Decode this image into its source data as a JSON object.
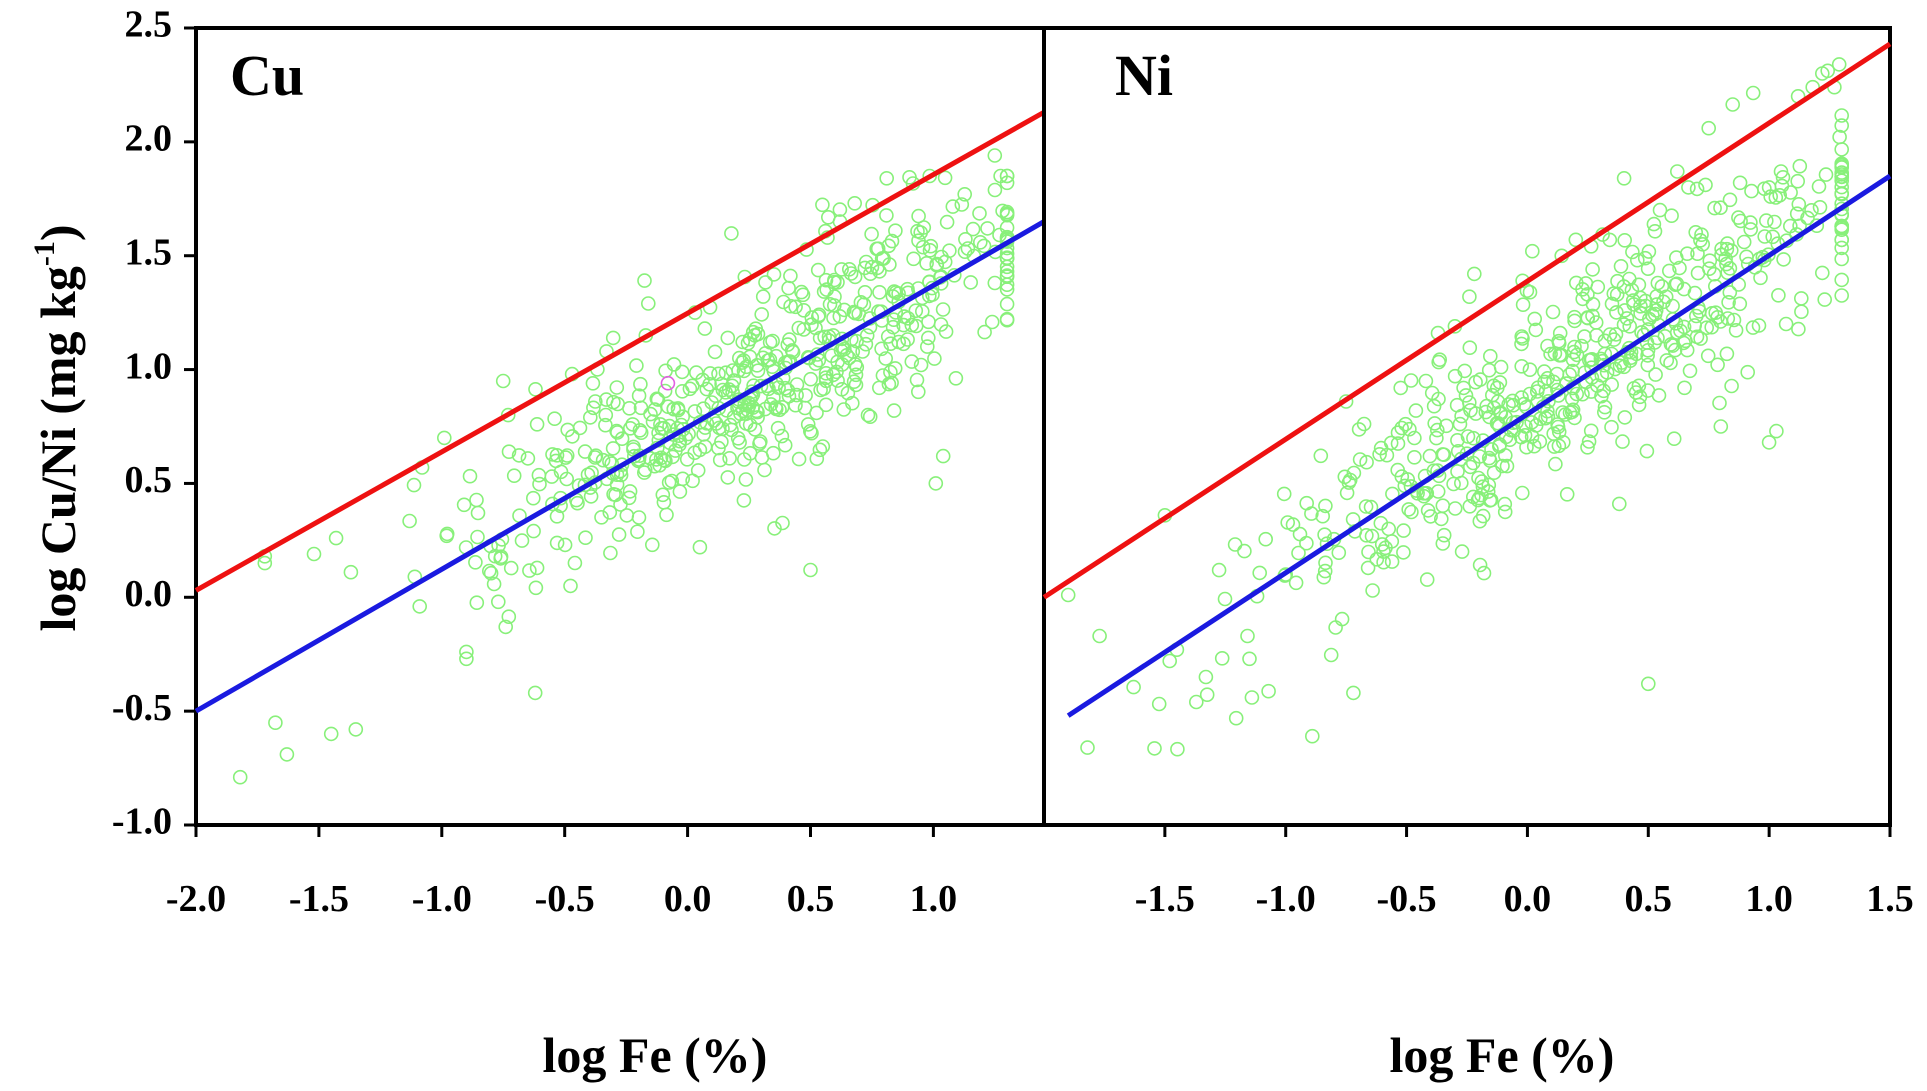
{
  "figure": {
    "ylabel": "log Cu/Ni (mg kg",
    "ylabel_sup": "-1",
    "ylabel_close": ")",
    "colors": {
      "points": "#88f07a",
      "upper_line": "#ee1111",
      "lower_line": "#1a1ae0",
      "outlier_point": "#e060e0"
    }
  },
  "chart_data": [
    {
      "type": "scatter",
      "title": "Cu",
      "xlabel": "log Fe (%)",
      "ylabel": "log Cu/Ni (mg kg-1)",
      "xlim": [
        -2.0,
        1.45
      ],
      "ylim": [
        -1.0,
        2.5
      ],
      "xticks": [
        "-2.0",
        "-1.5",
        "-1.0",
        "-0.5",
        "0.0",
        "0.5",
        "1.0"
      ],
      "yticks": [
        "-1.0",
        "-0.5",
        "0.0",
        "0.5",
        "1.0",
        "1.5",
        "2.0",
        "2.5"
      ],
      "grid": false,
      "legend": "none",
      "lines": [
        {
          "color": "red",
          "x": [
            -2.0,
            1.45
          ],
          "y": [
            0.03,
            2.13
          ]
        },
        {
          "color": "blue",
          "x": [
            -2.0,
            1.45
          ],
          "y": [
            -0.5,
            1.65
          ]
        }
      ],
      "highlight_point": {
        "x": -0.08,
        "y": 0.94
      },
      "point_generator": {
        "n": 560,
        "slope": 0.62,
        "intercept": 0.78,
        "x_center": 0.3,
        "x_spread": 0.55,
        "x_min": -1.9,
        "x_max": 1.3,
        "residual_sd": 0.22,
        "y_min": -0.8,
        "y_max": 1.85,
        "seed": 7
      },
      "points": [
        [
          -1.82,
          -0.79
        ],
        [
          -1.63,
          -0.69
        ],
        [
          -1.45,
          -0.6
        ],
        [
          -1.35,
          -0.58
        ],
        [
          -1.72,
          0.15
        ],
        [
          -1.72,
          0.18
        ],
        [
          -1.52,
          0.19
        ],
        [
          -1.43,
          0.26
        ],
        [
          -1.37,
          0.11
        ],
        [
          -1.08,
          0.57
        ],
        [
          -0.99,
          0.7
        ],
        [
          -0.75,
          0.95
        ],
        [
          -0.73,
          0.8
        ],
        [
          -0.62,
          -0.42
        ],
        [
          -0.9,
          -0.24
        ],
        [
          -0.9,
          -0.27
        ],
        [
          -0.47,
          0.98
        ],
        [
          -0.33,
          1.08
        ],
        [
          -0.17,
          1.15
        ],
        [
          -0.16,
          1.29
        ],
        [
          0.03,
          1.25
        ],
        [
          0.07,
          1.18
        ],
        [
          0.5,
          0.12
        ],
        [
          0.05,
          0.22
        ],
        [
          0.62,
          1.65
        ],
        [
          0.68,
          1.73
        ],
        [
          0.81,
          1.84
        ],
        [
          1.25,
          1.94
        ],
        [
          1.22,
          1.62
        ],
        [
          1.25,
          1.38
        ],
        [
          1.01,
          0.5
        ],
        [
          1.04,
          0.62
        ],
        [
          0.95,
          1.02
        ],
        [
          0.98,
          1.21
        ],
        [
          0.84,
          0.82
        ],
        [
          -0.77,
          -0.02
        ],
        [
          -0.74,
          -0.13
        ],
        [
          -1.11,
          0.09
        ],
        [
          -1.09,
          -0.04
        ],
        [
          -0.98,
          0.27
        ]
      ]
    },
    {
      "type": "scatter",
      "title": "Ni",
      "xlabel": "log Fe (%)",
      "ylabel": "log Cu/Ni (mg kg-1)",
      "xlim": [
        -2.0,
        1.5
      ],
      "ylim": [
        -1.0,
        2.5
      ],
      "xticks": [
        "-1.5",
        "-1.0",
        "-0.5",
        "0.0",
        "0.5",
        "1.0",
        "1.5"
      ],
      "grid": false,
      "legend": "none",
      "lines": [
        {
          "color": "red",
          "x": [
            -2.0,
            1.5
          ],
          "y": [
            0.0,
            2.43
          ]
        },
        {
          "color": "blue",
          "x": [
            -1.9,
            1.5
          ],
          "y": [
            -0.52,
            1.85
          ]
        }
      ],
      "point_generator": {
        "n": 560,
        "slope": 0.7,
        "intercept": 0.84,
        "x_center": 0.15,
        "x_spread": 0.62,
        "x_min": -1.95,
        "x_max": 1.3,
        "residual_sd": 0.22,
        "y_min": -0.7,
        "y_max": 2.36,
        "seed": 23
      },
      "points": [
        [
          -1.9,
          0.01
        ],
        [
          -1.82,
          -0.66
        ],
        [
          -1.77,
          -0.17
        ],
        [
          -1.5,
          0.36
        ],
        [
          -1.48,
          -0.28
        ],
        [
          -1.45,
          -0.23
        ],
        [
          -1.37,
          -0.46
        ],
        [
          -1.33,
          -0.35
        ],
        [
          -1.15,
          -0.27
        ],
        [
          -1.14,
          -0.44
        ],
        [
          -0.89,
          -0.61
        ],
        [
          -0.75,
          0.86
        ],
        [
          -0.72,
          -0.42
        ],
        [
          -0.42,
          0.95
        ],
        [
          -0.37,
          1.16
        ],
        [
          -0.3,
          1.19
        ],
        [
          -0.24,
          1.32
        ],
        [
          -0.22,
          1.42
        ],
        [
          -0.02,
          1.39
        ],
        [
          0.02,
          1.52
        ],
        [
          0.2,
          1.57
        ],
        [
          0.5,
          -0.38
        ],
        [
          0.38,
          0.41
        ],
        [
          0.4,
          1.84
        ],
        [
          0.62,
          1.87
        ],
        [
          0.75,
          2.06
        ],
        [
          0.88,
          1.82
        ],
        [
          1.12,
          2.2
        ],
        [
          1.18,
          2.24
        ],
        [
          1.22,
          2.3
        ],
        [
          1.27,
          2.24
        ],
        [
          1.29,
          2.34
        ],
        [
          1.3,
          1.63
        ],
        [
          1.07,
          1.2
        ],
        [
          1.03,
          0.73
        ],
        [
          1.0,
          0.68
        ],
        [
          1.0,
          1.8
        ],
        [
          0.8,
          0.75
        ],
        [
          0.65,
          0.92
        ],
        [
          -1.0,
          0.1
        ]
      ]
    }
  ]
}
